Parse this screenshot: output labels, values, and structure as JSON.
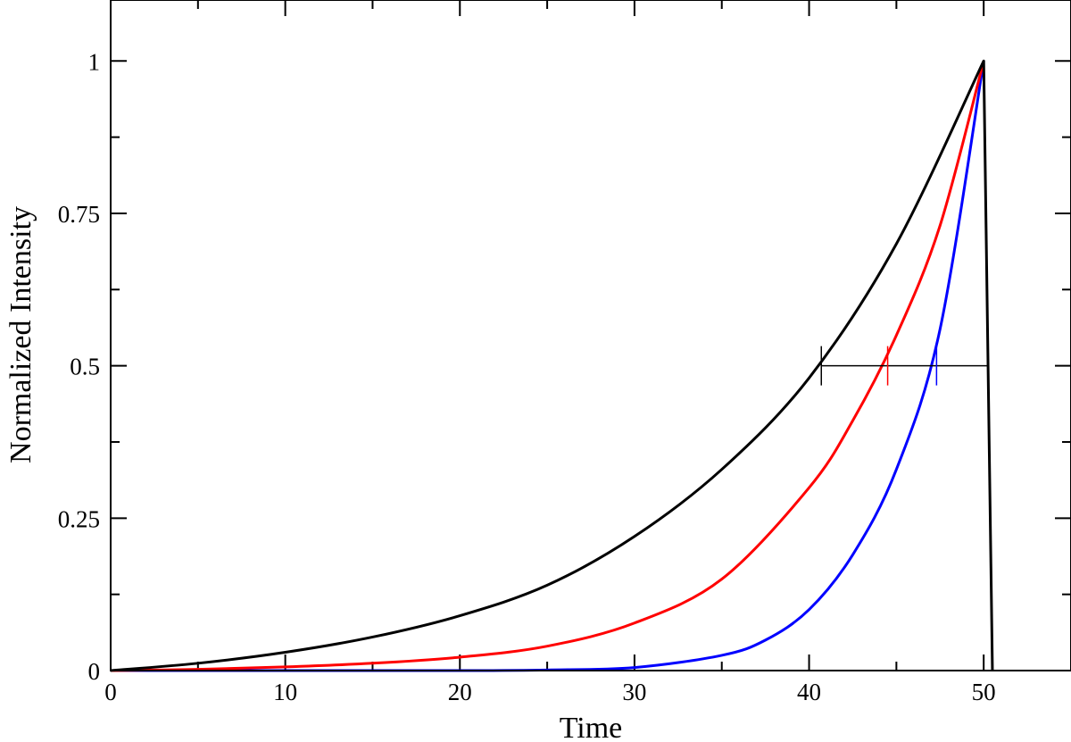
{
  "chart_data": {
    "type": "line",
    "title": "",
    "xlabel": "Time",
    "ylabel": "Normalized Intensity",
    "xlim": [
      0,
      55
    ],
    "ylim": [
      0,
      1.1
    ],
    "x_ticks": [
      0,
      10,
      20,
      30,
      40,
      50
    ],
    "x_minor_ticks": [
      5,
      15,
      25,
      35,
      45,
      55
    ],
    "y_ticks": [
      {
        "value": 0,
        "label": "0"
      },
      {
        "value": 0.25,
        "label": "0.25"
      },
      {
        "value": 0.5,
        "label": "0.5"
      },
      {
        "value": 0.75,
        "label": "0.75"
      },
      {
        "value": 1,
        "label": "1"
      }
    ],
    "y_minor_ticks": [
      0.125,
      0.375,
      0.625,
      0.875
    ],
    "grid": false,
    "legend": "none",
    "series": [
      {
        "color": "#000000",
        "x": [
          0,
          5,
          10,
          15,
          20,
          25,
          30,
          35,
          40,
          45,
          50,
          50.5
        ],
        "y": [
          0,
          0.012,
          0.03,
          0.055,
          0.09,
          0.14,
          0.22,
          0.33,
          0.48,
          0.7,
          1.0,
          0
        ]
      },
      {
        "color": "#ff0000",
        "x": [
          0,
          5,
          10,
          15,
          20,
          25,
          30,
          35,
          40,
          42.5,
          45,
          47.5,
          50
        ],
        "y": [
          0,
          0.002,
          0.006,
          0.012,
          0.022,
          0.04,
          0.078,
          0.15,
          0.3,
          0.41,
          0.55,
          0.73,
          1.0
        ]
      },
      {
        "color": "#0000ff",
        "x": [
          0,
          10,
          20,
          25,
          30,
          35,
          37.5,
          40,
          42.5,
          45,
          47.5,
          50
        ],
        "y": [
          0,
          0,
          0,
          0.001,
          0.005,
          0.025,
          0.05,
          0.1,
          0.19,
          0.33,
          0.56,
          1.0
        ]
      }
    ],
    "annotations": {
      "half_max_line": {
        "y": 0.5,
        "x_start": 40.7,
        "x_end": 50.3,
        "color": "#000000"
      },
      "markers": [
        {
          "x": 40.7,
          "y": 0.5,
          "color": "#000000"
        },
        {
          "x": 44.5,
          "y": 0.5,
          "color": "#ff0000"
        },
        {
          "x": 47.3,
          "y": 0.5,
          "color": "#0000ff"
        }
      ]
    }
  }
}
